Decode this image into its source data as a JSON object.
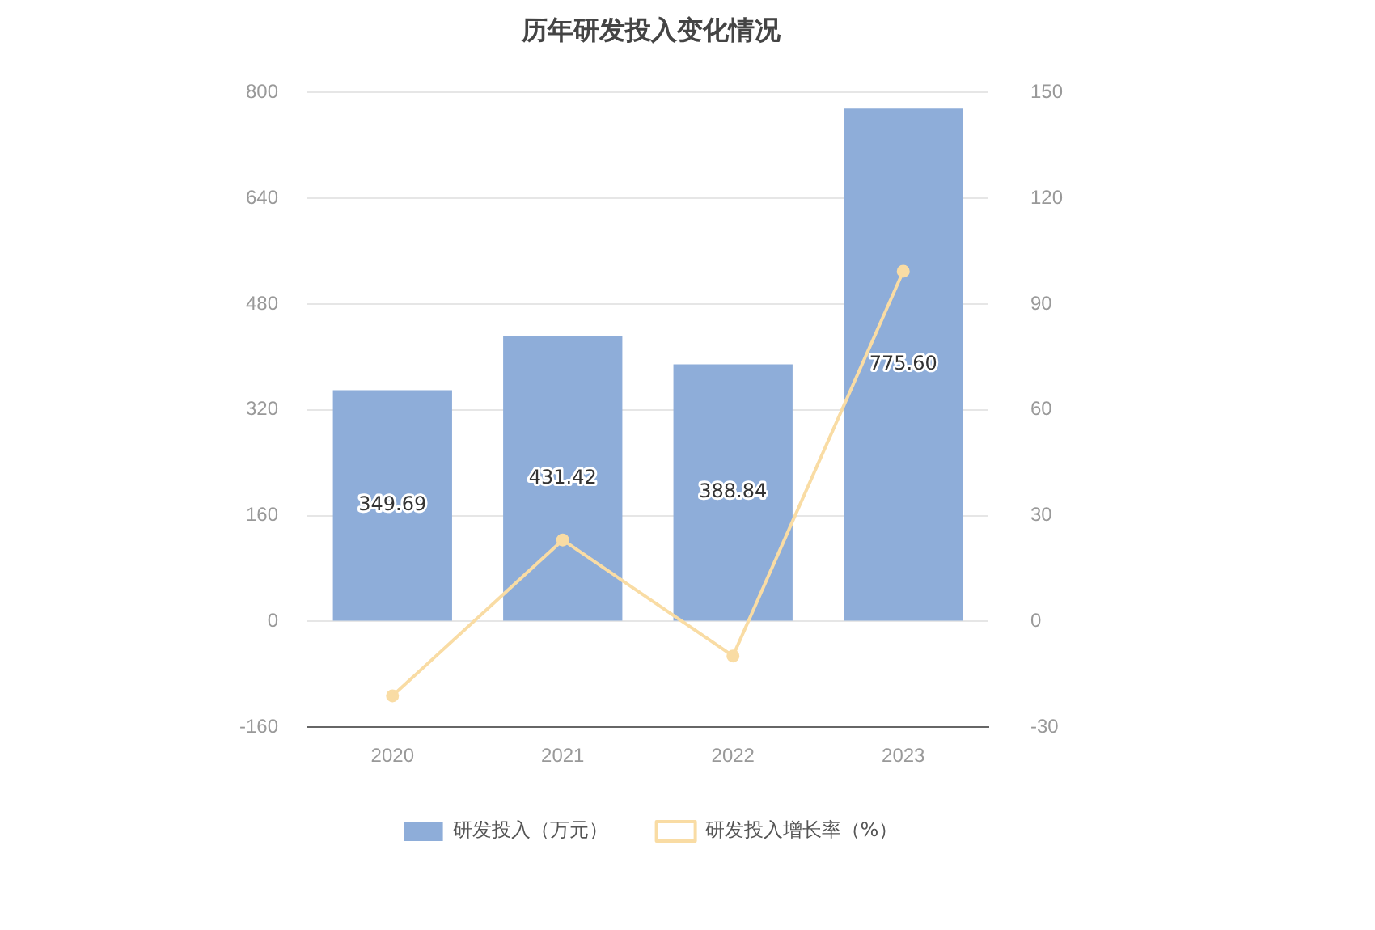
{
  "chart_data": {
    "type": "bar",
    "title": "历年研发投入变化情况",
    "categories": [
      "2020",
      "2021",
      "2022",
      "2023"
    ],
    "series": [
      {
        "name": "研发投入（万元）",
        "color": "#8eadd9",
        "values": [
          349.69,
          431.42,
          388.84,
          775.6
        ],
        "value_labels": [
          "349.69",
          "431.42",
          "388.84",
          "775.60"
        ]
      },
      {
        "name": "研发投入增长率（%）",
        "type": "line",
        "axis": "y2",
        "color": "#f9dca4",
        "values": [
          -21.1,
          23.1,
          -9.8,
          99.3
        ]
      }
    ],
    "ylim": [
      -160,
      800
    ],
    "yticks": [
      -160,
      0,
      160,
      320,
      480,
      640,
      800
    ],
    "y2lim": [
      -30,
      150
    ],
    "y2ticks": [
      -30,
      0,
      30,
      60,
      90,
      120,
      150
    ],
    "grid": "y",
    "legend": "bottom",
    "marker": "circle",
    "line_style": "solid"
  }
}
